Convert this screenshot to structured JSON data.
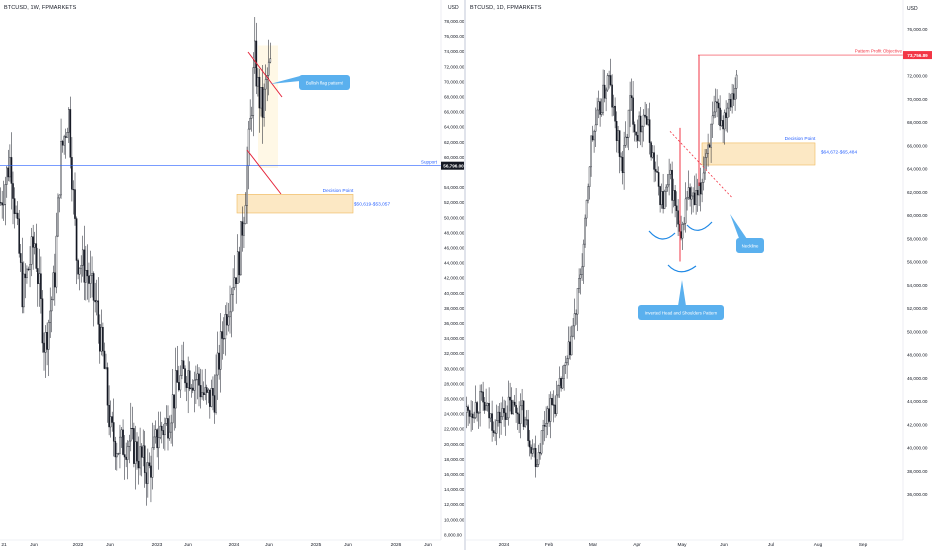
{
  "colors": {
    "candle": "#131722",
    "support": "#2962ff",
    "flag": "#e5253b",
    "zone_fill": "#fce8c4",
    "zone_stroke": "#f0b85c",
    "flag_fill": "#fff8e6",
    "callout": "#5ab0ee",
    "callout_text": "#ffffff",
    "price_badge": "#131722",
    "target_badge": "#f23645",
    "axis_text": "#131722",
    "grid": "#e0e3eb"
  },
  "left": {
    "title": "BTCUSD, 1W, FPMARKETS",
    "currency": "USD",
    "yaxis_ticks": [
      "78,000.00",
      "76,000.00",
      "74,000.00",
      "72,000.00",
      "70,000.00",
      "68,000.00",
      "66,000.00",
      "64,000.00",
      "62,000.00",
      "60,000.00",
      "56,796.00",
      "54,000.00",
      "52,000.00",
      "50,000.00",
      "48,000.00",
      "46,000.00",
      "44,000.00",
      "42,000.00",
      "40,000.00",
      "38,000.00",
      "36,000.00",
      "34,000.00",
      "32,000.00",
      "30,000.00",
      "28,000.00",
      "26,000.00",
      "24,000.00",
      "22,000.00",
      "20,000.00",
      "18,000.00",
      "16,000.00",
      "14,000.00",
      "12,000.00",
      "10,000.00",
      "8,000.00"
    ],
    "xaxis_ticks": [
      "21",
      "Jun",
      "2022",
      "Jun",
      "2023",
      "Jun",
      "2024",
      "Jun",
      "2025",
      "Jun",
      "2026",
      "Jun"
    ],
    "price_badge": "56,796.00",
    "support_label": "Support",
    "callout_flag": "Bullish flag pattern!",
    "decision_label": "Decision Point",
    "decision_range": "$50,619-$53,057"
  },
  "right": {
    "title": "BTCUSD, 1D, FPMARKETS",
    "currency": "USD",
    "yaxis_ticks": [
      "76,000.00",
      "74,000.00",
      "72,000.00",
      "70,000.00",
      "68,000.00",
      "66,000.00",
      "64,000.00",
      "62,000.00",
      "60,000.00",
      "58,000.00",
      "56,000.00",
      "54,000.00",
      "52,000.00",
      "50,000.00",
      "48,000.00",
      "46,000.00",
      "44,000.00",
      "42,000.00",
      "40,000.00",
      "38,000.00",
      "36,000.00"
    ],
    "xaxis_ticks": [
      "2024",
      "Feb",
      "Mar",
      "Apr",
      "May",
      "Jun",
      "Jul",
      "Aug",
      "Sep"
    ],
    "target_badge": "73,756.89",
    "target_label": "Pattern Profit Objective",
    "decision_label": "Decision Point",
    "decision_range": "$64,672-$65,484",
    "callout_neckline": "Neckline",
    "callout_ihs": "Inverted Head and Shoulders Pattern"
  },
  "chart_data": [
    {
      "type": "candlestick",
      "title": "BTCUSD, 1W, FPMARKETS",
      "ylim": [
        8000,
        79000
      ],
      "series": [
        {
          "name": "BTCUSD",
          "points": [
            {
              "x": "2021",
              "y": 52000
            },
            {
              "x": "Jun 2021",
              "y": 34000
            },
            {
              "x": "2022",
              "y": 42000
            },
            {
              "x": "Jun 2022",
              "y": 20000
            },
            {
              "x": "2023",
              "y": 16600
            },
            {
              "x": "Jun 2023",
              "y": 30000
            },
            {
              "x": "2024",
              "y": 43000
            },
            {
              "x": "Mar 2024",
              "y": 71000
            },
            {
              "x": "May 2024",
              "y": 63000
            },
            {
              "x": "Jun 2024",
              "y": 69000
            }
          ]
        }
      ],
      "annotations": [
        "Bullish flag pattern!",
        "Support",
        "Decision Point",
        "$50,619-$53,057",
        "56,796.00"
      ]
    },
    {
      "type": "candlestick",
      "title": "BTCUSD, 1D, FPMARKETS",
      "ylim": [
        35000,
        77000
      ],
      "series": [
        {
          "name": "BTCUSD",
          "points": [
            {
              "x": "2024",
              "y": 43000
            },
            {
              "x": "Feb",
              "y": 43000
            },
            {
              "x": "Mar",
              "y": 62000
            },
            {
              "x": "Mid Mar",
              "y": 73000
            },
            {
              "x": "Apr",
              "y": 67000
            },
            {
              "x": "May",
              "y": 57000
            },
            {
              "x": "Mid May",
              "y": 66000
            },
            {
              "x": "Jun",
              "y": 71000
            }
          ]
        }
      ],
      "annotations": [
        "Pattern Profit Objective",
        "73,756.89",
        "Decision Point",
        "$64,672-$65,484",
        "Neckline",
        "Inverted Head and Shoulders Pattern"
      ]
    }
  ]
}
